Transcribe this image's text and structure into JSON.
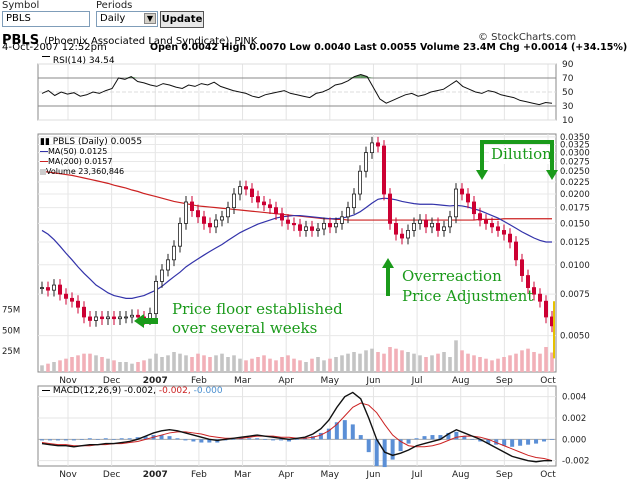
{
  "form": {
    "symbol_label": "Symbol",
    "symbol_value": "PBLS",
    "periods_label": "Periods",
    "periods_value": "Daily",
    "update_label": "Update"
  },
  "header": {
    "ticker": "PBLS",
    "company": "(Phoenix Associated Land Syndicate)",
    "exchange": "PINK",
    "watermark": "© StockCharts.com",
    "date": "4-Oct-2007 12:52pm",
    "quote": "Open 0.0042  High 0.0070  Low 0.0040  Last 0.0055  Volume 23.4M  Chg +0.0014 (+34.15%)"
  },
  "rsi_legend": "RSI(14) 34.54",
  "price_legend": {
    "title": "PBLS (Daily) 0.0055",
    "ma50": "MA(50) 0.0125",
    "ma200": "MA(200) 0.0157",
    "volume": "Volume 23,360,846"
  },
  "macd_legend": {
    "prefix": "MACD(12,26,9)",
    "v1": "-0.002,",
    "v2": "-0.002,",
    "v3": "-0.000"
  },
  "annotations": {
    "floor_line1": "Price floor established",
    "floor_line2": "over several weeks",
    "over_line1": "Overreaction",
    "over_line2": "Price Adjustment",
    "dilution": "Dilution"
  },
  "colors": {
    "up": "#222222",
    "down": "#cc0033",
    "ma50": "#3333aa",
    "ma200": "#cc2222",
    "annot": "#1a9a1a",
    "vol_up": "#c4c4c4",
    "vol_down": "#f2b0b8"
  },
  "chart_data": [
    {
      "type": "line",
      "name": "RSI(14)",
      "ylim": [
        10,
        90
      ],
      "y_ticks": [
        10,
        30,
        50,
        70,
        90
      ],
      "x_ticks": [
        "Nov",
        "Dec",
        "2007",
        "Feb",
        "Mar",
        "Apr",
        "May",
        "Jun",
        "Jul",
        "Aug",
        "Sep",
        "Oct"
      ],
      "values": [
        48,
        52,
        45,
        50,
        47,
        49,
        44,
        46,
        50,
        48,
        52,
        55,
        70,
        68,
        72,
        65,
        63,
        60,
        58,
        62,
        60,
        57,
        55,
        60,
        58,
        62,
        60,
        64,
        58,
        55,
        52,
        50,
        48,
        44,
        42,
        46,
        48,
        50,
        52,
        48,
        46,
        44,
        42,
        48,
        50,
        54,
        60,
        62,
        66,
        72,
        75,
        72,
        56,
        40,
        34,
        38,
        42,
        46,
        48,
        44,
        46,
        50,
        52,
        54,
        60,
        66,
        58,
        54,
        50,
        48,
        52,
        50,
        46,
        44,
        42,
        38,
        36,
        34,
        32,
        35,
        34
      ],
      "last": 34.54
    },
    {
      "type": "candlestick",
      "title": "PBLS (Daily) 0.0055",
      "y_scale": "log",
      "ylim": [
        0.0035,
        0.036
      ],
      "y_ticks": [
        0.005,
        0.0075,
        0.01,
        0.0125,
        0.015,
        0.0175,
        0.02,
        0.0225,
        0.025,
        0.0275,
        0.03,
        0.0325,
        0.035
      ],
      "x_ticks": [
        "Nov",
        "Dec",
        "2007",
        "Feb",
        "Mar",
        "Apr",
        "May",
        "Jun",
        "Jul",
        "Aug",
        "Sep",
        "Oct"
      ],
      "close": [
        0.008,
        0.0078,
        0.0082,
        0.0075,
        0.0072,
        0.007,
        0.0066,
        0.006,
        0.0058,
        0.006,
        0.0059,
        0.006,
        0.0059,
        0.006,
        0.006,
        0.0061,
        0.006,
        0.0059,
        0.0062,
        0.0085,
        0.0095,
        0.0105,
        0.012,
        0.015,
        0.0185,
        0.017,
        0.016,
        0.015,
        0.0145,
        0.0155,
        0.016,
        0.0175,
        0.02,
        0.0215,
        0.021,
        0.0195,
        0.0185,
        0.018,
        0.0175,
        0.0165,
        0.0155,
        0.015,
        0.0148,
        0.014,
        0.0145,
        0.014,
        0.0142,
        0.015,
        0.0145,
        0.015,
        0.016,
        0.0175,
        0.02,
        0.025,
        0.03,
        0.033,
        0.032,
        0.02,
        0.015,
        0.0135,
        0.013,
        0.014,
        0.015,
        0.0155,
        0.0145,
        0.015,
        0.014,
        0.0145,
        0.016,
        0.021,
        0.02,
        0.0185,
        0.0165,
        0.0155,
        0.015,
        0.0145,
        0.014,
        0.0135,
        0.0125,
        0.0105,
        0.009,
        0.008,
        0.0075,
        0.007,
        0.006,
        0.0055
      ],
      "ma50": [
        0.014,
        0.0135,
        0.0128,
        0.012,
        0.0112,
        0.0105,
        0.0098,
        0.0092,
        0.0087,
        0.0082,
        0.0079,
        0.0076,
        0.0074,
        0.0073,
        0.0072,
        0.0072,
        0.0073,
        0.0074,
        0.0076,
        0.0078,
        0.0081,
        0.0085,
        0.0089,
        0.0093,
        0.0098,
        0.0102,
        0.0106,
        0.011,
        0.0114,
        0.0118,
        0.0122,
        0.0127,
        0.0132,
        0.0137,
        0.0141,
        0.0145,
        0.0149,
        0.0152,
        0.0155,
        0.0158,
        0.016,
        0.0161,
        0.0162,
        0.0162,
        0.0161,
        0.016,
        0.0159,
        0.0158,
        0.0157,
        0.0157,
        0.0158,
        0.016,
        0.0163,
        0.0168,
        0.0175,
        0.0183,
        0.019,
        0.0192,
        0.0191,
        0.0189,
        0.0186,
        0.0184,
        0.0182,
        0.0181,
        0.0181,
        0.0181,
        0.018,
        0.0179,
        0.0178,
        0.0179,
        0.0178,
        0.0176,
        0.0173,
        0.017,
        0.0166,
        0.0162,
        0.0158,
        0.0153,
        0.0148,
        0.0143,
        0.0138,
        0.0134,
        0.013,
        0.0127,
        0.0125,
        0.0125
      ],
      "ma200": [
        0.025,
        0.0248,
        0.0246,
        0.0244,
        0.0242,
        0.024,
        0.0237,
        0.0234,
        0.0231,
        0.0228,
        0.0225,
        0.0222,
        0.0218,
        0.0215,
        0.0212,
        0.0208,
        0.0205,
        0.0201,
        0.0198,
        0.0195,
        0.0192,
        0.0189,
        0.0186,
        0.0184,
        0.0182,
        0.018,
        0.0178,
        0.0177,
        0.0176,
        0.0175,
        0.0174,
        0.0173,
        0.0172,
        0.0171,
        0.017,
        0.0169,
        0.0168,
        0.0167,
        0.0166,
        0.0165,
        0.0164,
        0.0163,
        0.0162,
        0.0161,
        0.016,
        0.0159,
        0.0158,
        0.0157,
        0.0157,
        0.0156,
        0.0156,
        0.0155,
        0.0155,
        0.0155,
        0.0155,
        0.0155,
        0.0155,
        0.0155,
        0.0155,
        0.0155,
        0.0155,
        0.0155,
        0.0155,
        0.0155,
        0.0155,
        0.0155,
        0.0155,
        0.0155,
        0.0155,
        0.0155,
        0.0155,
        0.0155,
        0.0155,
        0.0156,
        0.0156,
        0.0156,
        0.0156,
        0.0157,
        0.0157,
        0.0157,
        0.0157,
        0.0157,
        0.0157,
        0.0157,
        0.0157,
        0.0157
      ],
      "volume_axis_ticks": [
        "25M",
        "50M",
        "75M"
      ],
      "volume_m": [
        8,
        10,
        12,
        14,
        16,
        18,
        20,
        22,
        22,
        20,
        18,
        16,
        14,
        12,
        12,
        10,
        12,
        14,
        16,
        22,
        18,
        20,
        24,
        22,
        20,
        18,
        22,
        20,
        18,
        20,
        22,
        18,
        20,
        16,
        14,
        16,
        18,
        20,
        16,
        14,
        18,
        20,
        16,
        14,
        12,
        16,
        18,
        14,
        16,
        18,
        20,
        22,
        24,
        22,
        26,
        28,
        24,
        22,
        30,
        28,
        26,
        24,
        22,
        20,
        18,
        20,
        22,
        24,
        18,
        38,
        26,
        22,
        20,
        18,
        16,
        14,
        16,
        18,
        20,
        22,
        26,
        28,
        24,
        22,
        30,
        23.4
      ]
    },
    {
      "type": "line",
      "name": "MACD(12,26,9)",
      "ylim": [
        -0.0025,
        0.005
      ],
      "y_ticks": [
        -0.002,
        0.0,
        0.002,
        0.004
      ],
      "x_ticks": [
        "Nov",
        "Dec",
        "2007",
        "Feb",
        "Mar",
        "Apr",
        "May",
        "Jun",
        "Jul",
        "Aug",
        "Sep",
        "Oct"
      ],
      "macd": [
        -0.0004,
        -0.0005,
        -0.0006,
        -0.0006,
        -0.0007,
        -0.0006,
        -0.0005,
        -0.0005,
        -0.0004,
        -0.0004,
        -0.0003,
        -0.0002,
        0.0,
        0.0003,
        0.0006,
        0.0008,
        0.0009,
        0.0008,
        0.0006,
        0.0004,
        0.0002,
        0.0,
        -0.0001,
        0.0,
        0.0001,
        0.0002,
        0.0003,
        0.0004,
        0.0003,
        0.0002,
        0.0001,
        0.0,
        0.0001,
        0.0002,
        0.0005,
        0.001,
        0.0018,
        0.003,
        0.004,
        0.0044,
        0.0038,
        0.002,
        0.0,
        -0.0012,
        -0.0015,
        -0.0013,
        -0.001,
        -0.0006,
        -0.0004,
        -0.0002,
        0.0,
        0.0005,
        0.0009,
        0.0006,
        0.0003,
        0.0,
        -0.0004,
        -0.0008,
        -0.0012,
        -0.0016,
        -0.0018,
        -0.002,
        -0.0021,
        -0.002,
        -0.002
      ],
      "signal": [
        -0.0003,
        -0.0004,
        -0.0005,
        -0.0005,
        -0.0006,
        -0.0006,
        -0.0006,
        -0.0005,
        -0.0005,
        -0.0004,
        -0.0004,
        -0.0003,
        -0.0002,
        0.0,
        0.0002,
        0.0004,
        0.0006,
        0.0007,
        0.0007,
        0.0006,
        0.0005,
        0.0003,
        0.0002,
        0.0001,
        0.0001,
        0.0001,
        0.0002,
        0.0003,
        0.0003,
        0.0003,
        0.0002,
        0.0002,
        0.0001,
        0.0001,
        0.0002,
        0.0004,
        0.0008,
        0.0014,
        0.0022,
        0.003,
        0.0034,
        0.0032,
        0.0025,
        0.0014,
        0.0004,
        -0.0002,
        -0.0006,
        -0.0007,
        -0.0007,
        -0.0006,
        -0.0004,
        -0.0001,
        0.0002,
        0.0003,
        0.0003,
        0.0002,
        0.0,
        -0.0003,
        -0.0006,
        -0.0009,
        -0.0012,
        -0.0015,
        -0.0017,
        -0.0018,
        -0.002
      ]
    }
  ]
}
